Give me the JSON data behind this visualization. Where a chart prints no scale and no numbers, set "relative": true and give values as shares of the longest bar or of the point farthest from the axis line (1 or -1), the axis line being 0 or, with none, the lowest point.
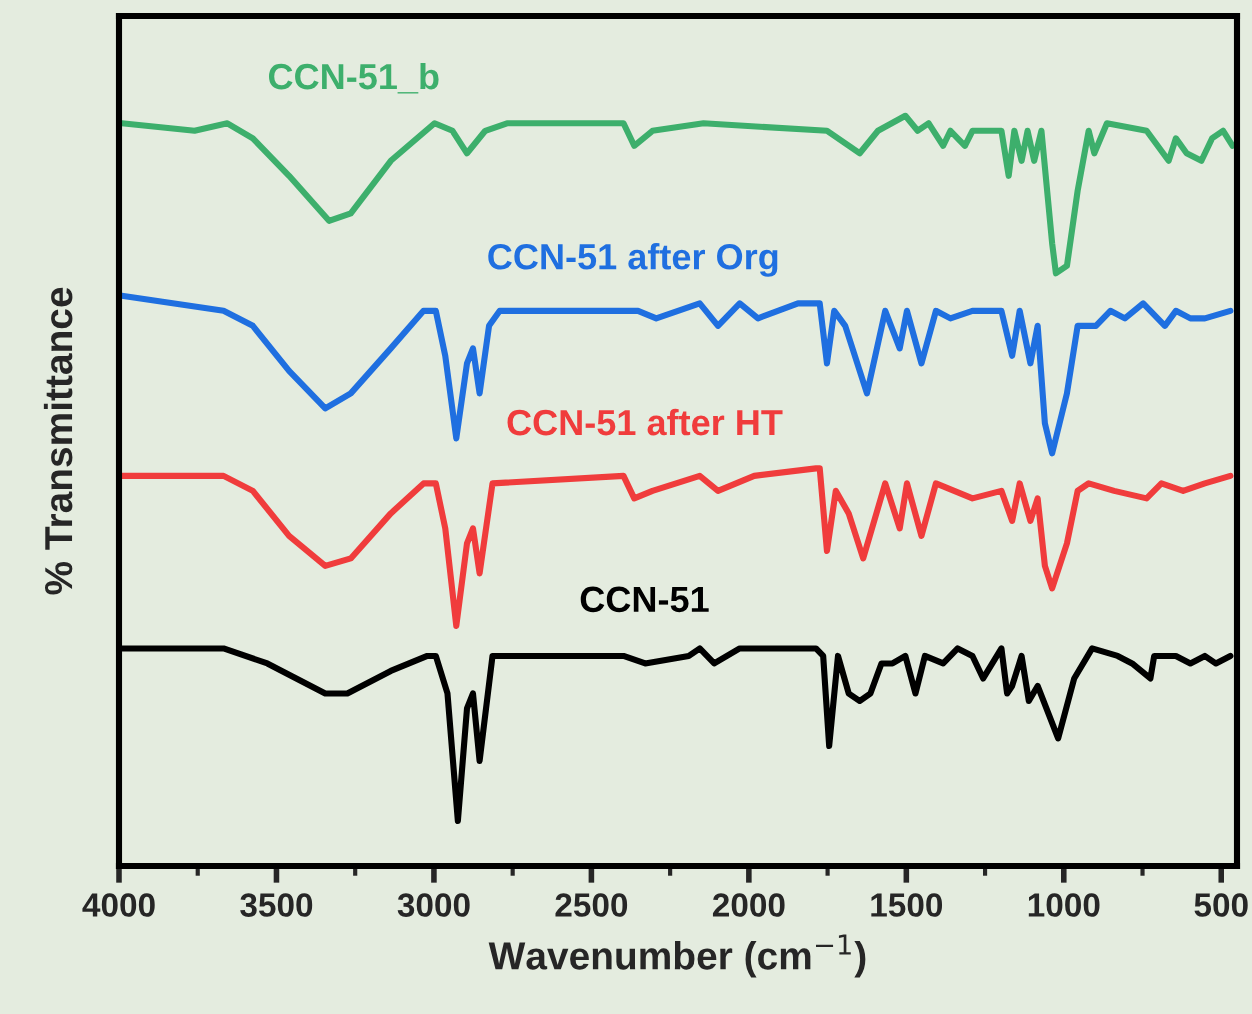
{
  "chart_data": {
    "type": "line",
    "relative": true,
    "xlabel": "Wavenumber (cm$^{−1}$)",
    "ylabel": "% Transmittance",
    "xlim": [
      4000,
      450
    ],
    "xticks": [
      4000,
      {
        "value": 3750,
        "label": null
      },
      3500,
      {
        "value": 3250,
        "label": null
      },
      3000,
      {
        "value": 2750,
        "label": null
      },
      2500,
      {
        "value": 2250,
        "label": null
      },
      2000,
      {
        "value": 1750,
        "label": null
      },
      1500,
      {
        "value": 1250,
        "label": null
      },
      1000,
      {
        "value": 750,
        "label": null
      },
      500
    ],
    "tick_labels": "x",
    "grid": false,
    "marker": "none",
    "line_style": "solid",
    "series": [
      {
        "name": "CCN-51_b",
        "color": "#3daf6c",
        "x": [
          3991,
          3760,
          3656,
          3575,
          3460,
          3333,
          3264,
          3137,
          2998,
          2941,
          2895,
          2837,
          2768,
          2398,
          2364,
          2306,
          2144,
          1752,
          1648,
          1590,
          1503,
          1464,
          1429,
          1383,
          1360,
          1314,
          1290,
          1198,
          1175,
          1157,
          1134,
          1115,
          1094,
          1071,
          1037,
          1025,
          990,
          956,
          921,
          903,
          863,
          737,
          667,
          644,
          610,
          563,
          529,
          494,
          464
        ],
        "values": [
          0.99,
          0.98,
          0.99,
          0.97,
          0.92,
          0.86,
          0.87,
          0.94,
          0.99,
          0.98,
          0.95,
          0.98,
          0.99,
          0.99,
          0.96,
          0.98,
          0.99,
          0.98,
          0.95,
          0.98,
          1.0,
          0.98,
          0.99,
          0.96,
          0.98,
          0.96,
          0.98,
          0.98,
          0.92,
          0.98,
          0.94,
          0.98,
          0.94,
          0.98,
          0.83,
          0.79,
          0.8,
          0.9,
          0.98,
          0.95,
          0.99,
          0.98,
          0.94,
          0.97,
          0.95,
          0.94,
          0.97,
          0.98,
          0.96
        ]
      },
      {
        "name": "CCN-51 after Org",
        "color": "#1f6fe0",
        "x": [
          3991,
          3668,
          3575,
          3460,
          3345,
          3264,
          3137,
          3033,
          2994,
          2964,
          2929,
          2895,
          2876,
          2855,
          2825,
          2791,
          2375,
          2352,
          2294,
          2156,
          2098,
          2029,
          1971,
          1844,
          1775,
          1752,
          1729,
          1694,
          1625,
          1567,
          1521,
          1498,
          1452,
          1406,
          1360,
          1290,
          1198,
          1164,
          1140,
          1106,
          1083,
          1060,
          1037,
          990,
          956,
          898,
          852,
          806,
          748,
          679,
          644,
          598,
          552,
          471
        ],
        "values": [
          0.76,
          0.74,
          0.72,
          0.66,
          0.61,
          0.63,
          0.69,
          0.74,
          0.74,
          0.68,
          0.57,
          0.67,
          0.69,
          0.63,
          0.72,
          0.74,
          0.74,
          0.74,
          0.73,
          0.75,
          0.72,
          0.75,
          0.73,
          0.75,
          0.75,
          0.67,
          0.74,
          0.72,
          0.63,
          0.74,
          0.69,
          0.74,
          0.67,
          0.74,
          0.73,
          0.74,
          0.74,
          0.68,
          0.74,
          0.67,
          0.72,
          0.59,
          0.55,
          0.63,
          0.72,
          0.72,
          0.74,
          0.73,
          0.75,
          0.72,
          0.74,
          0.73,
          0.73,
          0.74
        ]
      },
      {
        "name": "CCN-51 after HT",
        "color": "#f03c3c",
        "x": [
          3991,
          3668,
          3575,
          3460,
          3345,
          3264,
          3137,
          3033,
          2994,
          2964,
          2929,
          2895,
          2876,
          2855,
          2814,
          2398,
          2364,
          2306,
          2156,
          2098,
          1983,
          1787,
          1775,
          1752,
          1724,
          1683,
          1637,
          1567,
          1521,
          1498,
          1452,
          1406,
          1290,
          1198,
          1164,
          1140,
          1106,
          1083,
          1060,
          1037,
          990,
          956,
          921,
          840,
          737,
          690,
          621,
          552,
          471
        ],
        "values": [
          0.52,
          0.52,
          0.5,
          0.44,
          0.4,
          0.41,
          0.47,
          0.51,
          0.51,
          0.45,
          0.32,
          0.43,
          0.45,
          0.39,
          0.51,
          0.52,
          0.49,
          0.5,
          0.52,
          0.5,
          0.52,
          0.53,
          0.53,
          0.42,
          0.5,
          0.47,
          0.41,
          0.51,
          0.45,
          0.51,
          0.44,
          0.51,
          0.49,
          0.5,
          0.46,
          0.51,
          0.46,
          0.49,
          0.4,
          0.37,
          0.43,
          0.5,
          0.51,
          0.5,
          0.49,
          0.51,
          0.5,
          0.51,
          0.52
        ]
      },
      {
        "name": "CCN-51",
        "color": "#000000",
        "x": [
          3991,
          3668,
          3529,
          3345,
          3275,
          3137,
          3021,
          2994,
          2957,
          2924,
          2895,
          2876,
          2855,
          2814,
          2768,
          2398,
          2329,
          2191,
          2156,
          2110,
          2029,
          1787,
          1764,
          1745,
          1717,
          1683,
          1648,
          1614,
          1579,
          1544,
          1503,
          1471,
          1441,
          1383,
          1337,
          1290,
          1256,
          1198,
          1180,
          1164,
          1134,
          1111,
          1083,
          1018,
          967,
          910,
          829,
          783,
          725,
          713,
          644,
          598,
          552,
          517,
          471
        ],
        "values": [
          0.29,
          0.29,
          0.27,
          0.23,
          0.23,
          0.26,
          0.28,
          0.28,
          0.23,
          0.06,
          0.21,
          0.23,
          0.14,
          0.28,
          0.28,
          0.28,
          0.27,
          0.28,
          0.29,
          0.27,
          0.29,
          0.29,
          0.28,
          0.16,
          0.28,
          0.23,
          0.22,
          0.23,
          0.27,
          0.27,
          0.28,
          0.23,
          0.28,
          0.27,
          0.29,
          0.28,
          0.25,
          0.29,
          0.23,
          0.24,
          0.28,
          0.22,
          0.24,
          0.17,
          0.25,
          0.29,
          0.28,
          0.27,
          0.25,
          0.28,
          0.28,
          0.27,
          0.28,
          0.27,
          0.28
        ]
      }
    ]
  }
}
